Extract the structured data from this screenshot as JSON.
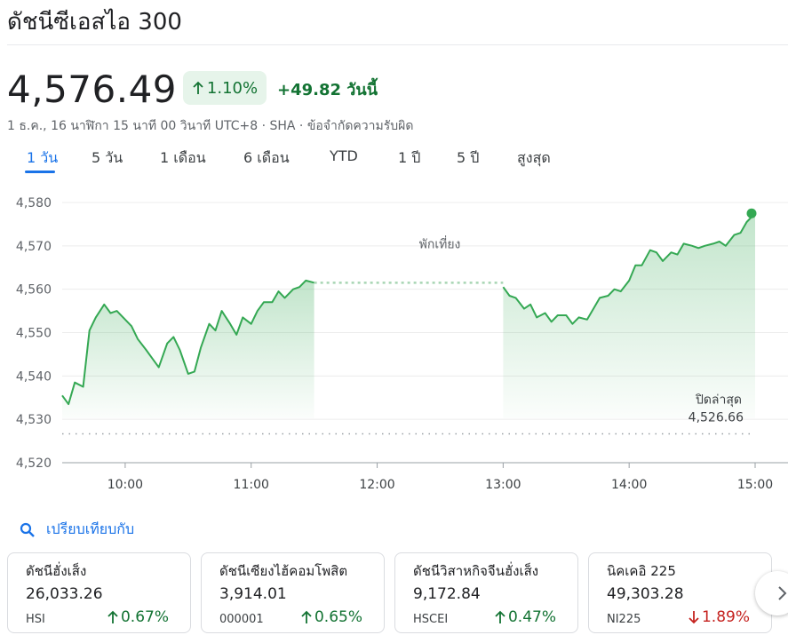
{
  "header": {
    "title": "ดัชนีซีเอสไอ 300",
    "price": "4,576.49",
    "pct_change": "1.10%",
    "abs_change": "+49.82 วันนี้",
    "meta": "1 ธ.ค., 16 นาฬิกา 15 นาที 00 วินาที UTC+8 · SHA · ข้อจำกัดความรับผิด"
  },
  "tabs": [
    {
      "label": "1 วัน",
      "active": true
    },
    {
      "label": "5 วัน"
    },
    {
      "label": "1 เดือน"
    },
    {
      "label": "6 เดือน"
    },
    {
      "label": "YTD"
    },
    {
      "label": "1 ปี"
    },
    {
      "label": "5 ปี"
    },
    {
      "label": "สูงสุด"
    }
  ],
  "chart_data": {
    "type": "area",
    "ylim": [
      4520,
      4580
    ],
    "y_ticks": [
      "4,580",
      "4,570",
      "4,560",
      "4,550",
      "4,540",
      "4,530",
      "4,520"
    ],
    "x_ticks": [
      "10:00",
      "11:00",
      "12:00",
      "13:00",
      "14:00",
      "15:00"
    ],
    "lunch_label": "พักเที่ยง",
    "prev_close_label": "ปิดล่าสุด",
    "prev_close_value": "4,526.66",
    "prev_close": 4526.66,
    "line_color": "#34a853",
    "series": [
      {
        "segment": "morning",
        "x": [
          "09:30",
          "09:33",
          "09:36",
          "09:40",
          "09:43",
          "09:46",
          "09:50",
          "09:53",
          "09:56",
          "10:00",
          "10:03",
          "10:06",
          "10:10",
          "10:13",
          "10:16",
          "10:20",
          "10:23",
          "10:26",
          "10:30",
          "10:33",
          "10:36",
          "10:40",
          "10:43",
          "10:46",
          "10:50",
          "10:53",
          "10:56",
          "11:00",
          "11:03",
          "11:06",
          "11:10",
          "11:13",
          "11:16",
          "11:20",
          "11:23",
          "11:26",
          "11:30"
        ],
        "y": [
          4535.5,
          4533.5,
          4538.5,
          4537.5,
          4550.5,
          4553.5,
          4556.5,
          4554.5,
          4555.0,
          4553.0,
          4551.5,
          4548.5,
          4546.0,
          4544.0,
          4542.0,
          4547.5,
          4549.0,
          4546.0,
          4540.5,
          4541.0,
          4546.5,
          4552.0,
          4550.5,
          4555.0,
          4552.0,
          4549.5,
          4553.5,
          4552.0,
          4555.0,
          4557.0,
          4557.0,
          4559.5,
          4558.0,
          4560.0,
          4560.5,
          4562.0,
          4561.5
        ]
      },
      {
        "segment": "afternoon",
        "x": [
          "13:00",
          "13:03",
          "13:06",
          "13:10",
          "13:13",
          "13:16",
          "13:20",
          "13:23",
          "13:26",
          "13:30",
          "13:33",
          "13:36",
          "13:40",
          "13:43",
          "13:46",
          "13:50",
          "13:53",
          "13:56",
          "14:00",
          "14:03",
          "14:06",
          "14:10",
          "14:13",
          "14:16",
          "14:20",
          "14:23",
          "14:26",
          "14:30",
          "14:33",
          "14:36",
          "14:40",
          "14:43",
          "14:46",
          "14:50",
          "14:53",
          "14:56",
          "15:00"
        ],
        "y": [
          4560.5,
          4558.5,
          4558.0,
          4555.5,
          4556.5,
          4553.5,
          4554.5,
          4552.5,
          4554.0,
          4554.0,
          4552.0,
          4553.5,
          4553.0,
          4555.5,
          4558.0,
          4558.5,
          4560.0,
          4559.5,
          4562.0,
          4565.5,
          4565.5,
          4569.0,
          4568.5,
          4566.5,
          4568.5,
          4568.0,
          4570.5,
          4570.0,
          4569.5,
          4570.0,
          4570.5,
          4571.0,
          4570.0,
          4572.5,
          4573.0,
          4575.5,
          4577.5
        ]
      }
    ]
  },
  "compare": {
    "label": "เปรียบเทียบกับ"
  },
  "cards": [
    {
      "name": "ดัชนีฮั่งเส็ง",
      "value": "26,033.26",
      "code": "HSI",
      "pct": "0.67%",
      "dir": "up"
    },
    {
      "name": "ดัชนีเซียงไฮ้คอมโพสิต",
      "value": "3,914.01",
      "code": "000001",
      "pct": "0.65%",
      "dir": "up"
    },
    {
      "name": "ดัชนีวิสาหกิจจีนฮั่งเส็ง",
      "value": "9,172.84",
      "code": "HSCEI",
      "pct": "0.47%",
      "dir": "up"
    },
    {
      "name": "นิคเคอิ 225",
      "value": "49,303.28",
      "code": "NI225",
      "pct": "1.89%",
      "dir": "down"
    }
  ]
}
